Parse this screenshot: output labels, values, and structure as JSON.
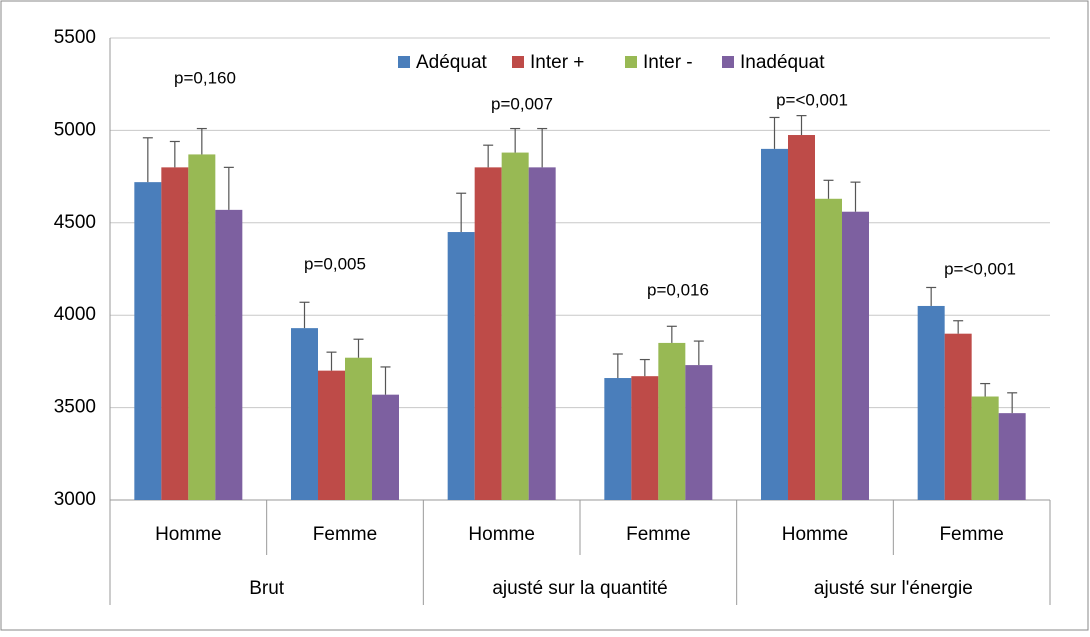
{
  "chart_data": {
    "type": "bar",
    "categories": [
      "Homme",
      "Femme",
      "Homme",
      "Femme",
      "Homme",
      "Femme"
    ],
    "groups": [
      "Brut",
      "ajusté sur la quantité",
      "ajusté sur l'énergie"
    ],
    "series": [
      {
        "name": "Adéquat",
        "color": "#4a7ebb",
        "values": [
          4720,
          3930,
          4450,
          3660,
          4900,
          4050
        ],
        "errors": [
          240,
          140,
          210,
          130,
          170,
          100
        ]
      },
      {
        "name": "Inter +",
        "color": "#be4b48",
        "values": [
          4800,
          3700,
          4800,
          3670,
          4975,
          3900
        ],
        "errors": [
          140,
          100,
          120,
          90,
          105,
          70
        ]
      },
      {
        "name": "Inter -",
        "color": "#98b954",
        "values": [
          4870,
          3770,
          4880,
          3850,
          4630,
          3560
        ],
        "errors": [
          140,
          100,
          130,
          90,
          100,
          70
        ]
      },
      {
        "name": "Inadéquat",
        "color": "#7d60a0",
        "values": [
          4570,
          3570,
          4800,
          3730,
          4560,
          3470
        ],
        "errors": [
          230,
          150,
          210,
          130,
          160,
          110
        ]
      }
    ],
    "annotations": [
      "p=0,160",
      "p=0,005",
      "p=0,007",
      "p=0,016",
      "p=<0,001",
      "p=<0,001"
    ],
    "ylim": [
      3000,
      5500
    ],
    "yticks": [
      3000,
      3500,
      4000,
      4500,
      5000,
      5500
    ],
    "grid": true
  }
}
